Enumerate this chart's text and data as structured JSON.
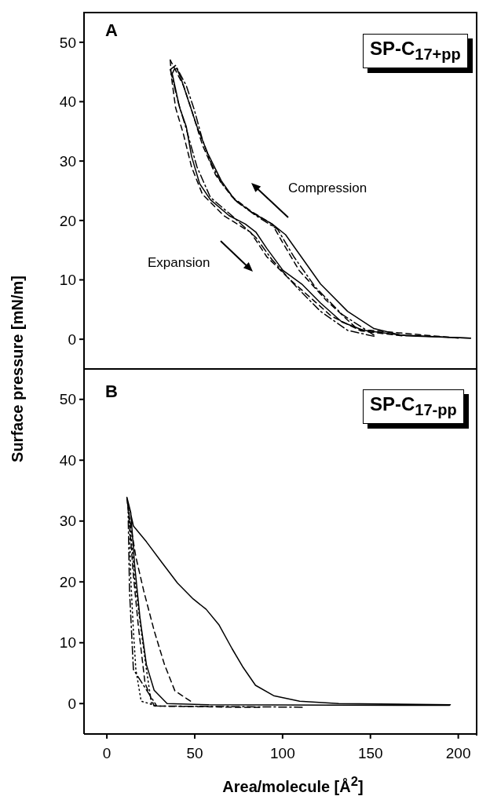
{
  "chart_data": [
    {
      "type": "line",
      "ylabel": "Surface pressure [mN/m]",
      "annotations": [
        "A",
        "SP-C$_{17+pp}$",
        "Compression",
        "Expansion"
      ],
      "xlim": [
        -13,
        210
      ],
      "xticks": [
        0,
        50,
        100,
        150,
        200
      ],
      "ylim": [
        -5,
        55
      ],
      "yticks": [
        0,
        10,
        20,
        30,
        40,
        50
      ],
      "tick_labels": "y",
      "grid": false,
      "legend": false,
      "marker": "none",
      "series": [
        {
          "color": "#000000",
          "line_style": "solid",
          "x": [
            207,
            198,
            167.5,
            152,
            137,
            121.6,
            109.4,
            101.7,
            94.1,
            83.4,
            72.7,
            65.1,
            57.4,
            51.3,
            46.7,
            42.1,
            39.8,
            38.3
          ],
          "values": [
            0.2,
            0.3,
            0.7,
            1.8,
            4.7,
            9.3,
            14.4,
            17.6,
            19.4,
            21.2,
            23.5,
            26.7,
            31.3,
            35.8,
            39.9,
            44,
            45.6,
            45.4
          ]
        },
        {
          "color": "#000000",
          "line_style": "solid",
          "x": [
            38.3,
            37.2,
            41.4,
            45.2,
            48.2,
            52.8,
            58.9,
            69.6,
            78.8,
            84.9,
            91,
            100.2,
            110.9,
            121.6,
            133.8,
            146,
            170,
            207
          ],
          "values": [
            45.4,
            44.7,
            39,
            35.8,
            30.8,
            26.2,
            23.5,
            20.8,
            19.4,
            18,
            15.3,
            11.6,
            9.3,
            6.1,
            2.9,
            1.5,
            0.6,
            0.2
          ]
        },
        {
          "color": "#000000",
          "line_style": "dashed",
          "x": [
            200,
            150,
            143,
            124.7,
            109.4,
            100.2,
            94,
            81.8,
            71.2,
            62,
            54.4,
            48.2,
            43.6,
            36.1
          ],
          "values": [
            0.2,
            1.5,
            1.6,
            6.6,
            11.6,
            16.2,
            19.4,
            21.6,
            24,
            27.6,
            32.7,
            38.6,
            42.7,
            47
          ]
        },
        {
          "color": "#000000",
          "line_style": "dashed",
          "x": [
            36.1,
            36.6,
            39.1,
            43.6,
            48.2,
            54.4,
            66.6,
            81.8,
            91,
            103.3,
            115.5,
            127.7,
            144.6,
            170
          ],
          "values": [
            47,
            44.5,
            39,
            34.5,
            29,
            24.4,
            20.8,
            18,
            13.9,
            10.3,
            7.1,
            3.9,
            1.4,
            0.5
          ]
        },
        {
          "color": "#000000",
          "line_style": "dashdot",
          "x": [
            152,
            133.8,
            118.6,
            106.4,
            97.2,
            84.9,
            74.2,
            65.1,
            58.9,
            54.4,
            49.8,
            45.2,
            39.1,
            36.1
          ],
          "values": [
            0.7,
            4.2,
            8.8,
            13.9,
            18.5,
            20.8,
            23.1,
            26.3,
            29.9,
            33.6,
            38.6,
            42.7,
            46.1,
            45.4
          ]
        },
        {
          "color": "#000000",
          "line_style": "dashdot",
          "x": [
            36.1,
            40.6,
            45.2,
            51.3,
            58.9,
            71.2,
            84.9,
            94,
            107.9,
            121.6,
            137,
            152
          ],
          "values": [
            45.4,
            39.9,
            35.4,
            29,
            23.9,
            20.8,
            17.1,
            13.4,
            8.8,
            4.7,
            1.5,
            0.5
          ]
        }
      ]
    },
    {
      "type": "line",
      "xlabel": "Area/molecule [Å$^{2}$]",
      "annotations": [
        "B",
        "SP-C$_{17-pp}$"
      ],
      "xlim": [
        -13,
        210
      ],
      "xticks": [
        0,
        50,
        100,
        150,
        200
      ],
      "ylim": [
        -5,
        55
      ],
      "yticks": [
        0,
        10,
        20,
        30,
        40,
        50
      ],
      "grid": false,
      "legend": false,
      "marker": "none",
      "series": [
        {
          "color": "#000000",
          "line_style": "solid",
          "x": [
            195.5,
            131.9,
            109.7,
            94.9,
            84.6,
            77.2,
            71.3,
            63.9,
            56.5,
            49.1,
            40.2,
            31.3,
            22.5,
            15.1,
            12.1,
            11.4,
            13.6,
            15.8,
            18.8,
            22.5,
            26.9,
            34.3,
            58,
            195
          ],
          "values": [
            -0.2,
            0,
            0.4,
            1.3,
            3,
            6.1,
            9,
            12.9,
            15.5,
            17.2,
            19.8,
            23.2,
            26.6,
            29.2,
            33.1,
            33.9,
            31.4,
            22.8,
            14.2,
            6.4,
            2.2,
            0,
            -0.2,
            -0.3
          ]
        },
        {
          "color": "#000000",
          "line_style": "dashed",
          "x": [
            47.6,
            38.7,
            32.8,
            26.9,
            21,
            16.5,
            12.9,
            11.4,
            12.9,
            15.1,
            18,
            21.7,
            26.9,
            72.7,
            87.5
          ],
          "values": [
            0.4,
            2.1,
            6.4,
            12,
            18.5,
            24.1,
            30.5,
            33.7,
            29.6,
            21.1,
            12.5,
            3.4,
            -0.4,
            -0.6,
            -0.6
          ]
        },
        {
          "color": "#000000",
          "line_style": "dotted",
          "x": [
            25.4,
            22.5,
            19.5,
            15.8,
            12.9,
            12.1,
            12.9,
            13.6,
            15.1,
            16.5,
            19.5,
            28.4
          ],
          "values": [
            0,
            5.6,
            12,
            20.6,
            30.5,
            32.6,
            29.2,
            20.6,
            12,
            5.6,
            0.4,
            -0.4
          ]
        },
        {
          "color": "#000000",
          "line_style": "dashdot",
          "x": [
            111.2,
            28.4,
            15.1,
            12.9,
            12.1
          ],
          "values": [
            -0.6,
            -0.4,
            5.6,
            18.5,
            31.4
          ]
        }
      ]
    }
  ]
}
